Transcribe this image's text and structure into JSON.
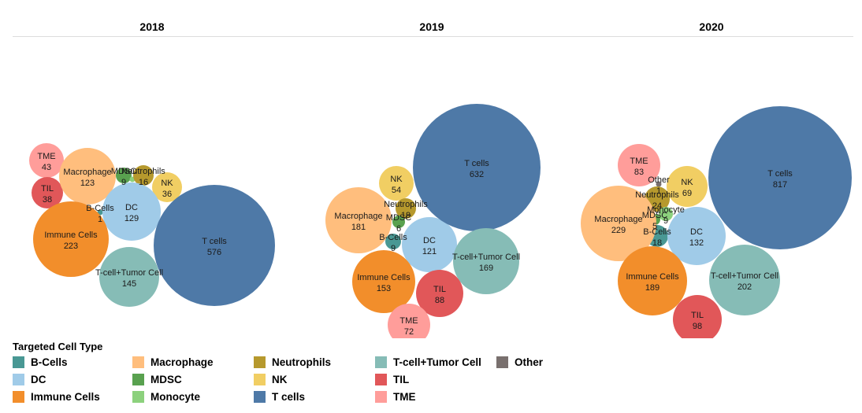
{
  "legend": {
    "title": "Targeted Cell Type",
    "items": [
      {
        "key": "B-Cells",
        "label": "B-Cells",
        "color": "#499894"
      },
      {
        "key": "DC",
        "label": "DC",
        "color": "#A0CBE8"
      },
      {
        "key": "Immune Cells",
        "label": "Immune Cells",
        "color": "#F28E2B"
      },
      {
        "key": "Macrophage",
        "label": "Macrophage",
        "color": "#FFBE7D"
      },
      {
        "key": "MDSC",
        "label": "MDSC",
        "color": "#59A14F"
      },
      {
        "key": "Monocyte",
        "label": "Monocyte",
        "color": "#8CD17D"
      },
      {
        "key": "Neutrophils",
        "label": "Neutrophils",
        "color": "#B6992D"
      },
      {
        "key": "NK",
        "label": "NK",
        "color": "#F1CE63"
      },
      {
        "key": "T cells",
        "label": "T cells",
        "color": "#4E79A7"
      },
      {
        "key": "T-cell+Tumor Cell",
        "label": "T-cell+Tumor Cell",
        "color": "#86BCB6"
      },
      {
        "key": "TIL",
        "label": "TIL",
        "color": "#E15759"
      },
      {
        "key": "TME",
        "label": "TME",
        "color": "#FF9D9A"
      },
      {
        "key": "Other",
        "label": "Other",
        "color": "#79706E"
      }
    ]
  },
  "chart_data": {
    "type": "bubble",
    "title": "",
    "facet_by": "year",
    "facets": [
      {
        "header": "2018",
        "bubbles": [
          {
            "category": "TME",
            "value": 43,
            "labeled": true
          },
          {
            "category": "TIL",
            "value": 38,
            "labeled": true
          },
          {
            "category": "Macrophage",
            "value": 123,
            "labeled": true
          },
          {
            "category": "MDSC",
            "value": 9,
            "labeled": true
          },
          {
            "category": "Monocyte",
            "value": null,
            "labeled": false
          },
          {
            "category": "Neutrophils",
            "value": 16,
            "labeled": true
          },
          {
            "category": "NK",
            "value": 36,
            "labeled": true
          },
          {
            "category": "B-Cells",
            "value": 1,
            "labeled": true
          },
          {
            "category": "DC",
            "value": 129,
            "labeled": true
          },
          {
            "category": "Immune Cells",
            "value": 223,
            "labeled": true
          },
          {
            "category": "T-cell+Tumor Cell",
            "value": 145,
            "labeled": true
          },
          {
            "category": "T cells",
            "value": 576,
            "labeled": true
          }
        ]
      },
      {
        "header": "2019",
        "bubbles": [
          {
            "category": "NK",
            "value": 54,
            "labeled": true
          },
          {
            "category": "Macrophage",
            "value": 181,
            "labeled": true
          },
          {
            "category": "Neutrophils",
            "value": 19,
            "labeled": true
          },
          {
            "category": "MDSC",
            "value": 6,
            "labeled": true
          },
          {
            "category": "B-Cells",
            "value": 9,
            "labeled": true
          },
          {
            "category": "DC",
            "value": 121,
            "labeled": true
          },
          {
            "category": "T cells",
            "value": 632,
            "labeled": true
          },
          {
            "category": "T-cell+Tumor Cell",
            "value": 169,
            "labeled": true
          },
          {
            "category": "Immune Cells",
            "value": 153,
            "labeled": true
          },
          {
            "category": "TIL",
            "value": 88,
            "labeled": true
          },
          {
            "category": "TME",
            "value": 72,
            "labeled": true
          }
        ]
      },
      {
        "header": "2020",
        "bubbles": [
          {
            "category": "TME",
            "value": 83,
            "labeled": true
          },
          {
            "category": "Other",
            "value": 1,
            "labeled": true
          },
          {
            "category": "NK",
            "value": 69,
            "labeled": true
          },
          {
            "category": "Neutrophils",
            "value": 24,
            "labeled": true
          },
          {
            "category": "Monocyte",
            "value": 9,
            "labeled": true
          },
          {
            "category": "MDSC",
            "value": 5,
            "labeled": true
          },
          {
            "category": "B-Cells",
            "value": 18,
            "labeled": true
          },
          {
            "category": "Macrophage",
            "value": 229,
            "labeled": true
          },
          {
            "category": "DC",
            "value": 132,
            "labeled": true
          },
          {
            "category": "T cells",
            "value": 817,
            "labeled": true
          },
          {
            "category": "Immune Cells",
            "value": 189,
            "labeled": true
          },
          {
            "category": "T-cell+Tumor Cell",
            "value": 202,
            "labeled": true
          },
          {
            "category": "TIL",
            "value": 98,
            "labeled": true
          }
        ]
      }
    ]
  }
}
